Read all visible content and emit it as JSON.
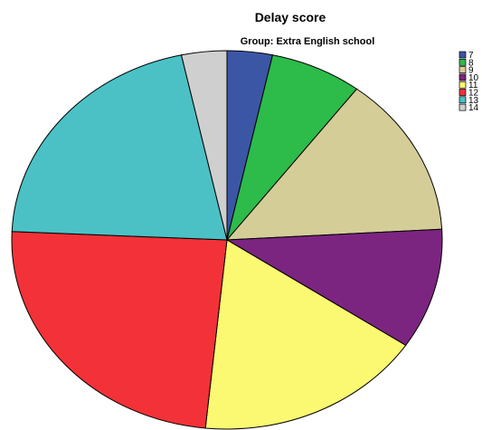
{
  "chart_data": {
    "type": "pie",
    "title": "Delay score",
    "subtitle": "Group: Extra English school",
    "categories": [
      "7",
      "8",
      "9",
      "10",
      "11",
      "12",
      "13",
      "14"
    ],
    "values": [
      3.4,
      6.9,
      13.8,
      10.3,
      17.2,
      24.1,
      20.9,
      3.4
    ],
    "colors": [
      "#3c56a6",
      "#2dbb4a",
      "#d4cd98",
      "#7b2580",
      "#fbf872",
      "#f23238",
      "#4bc1c6",
      "#cfcfcf"
    ],
    "legend_position": "top-right"
  }
}
